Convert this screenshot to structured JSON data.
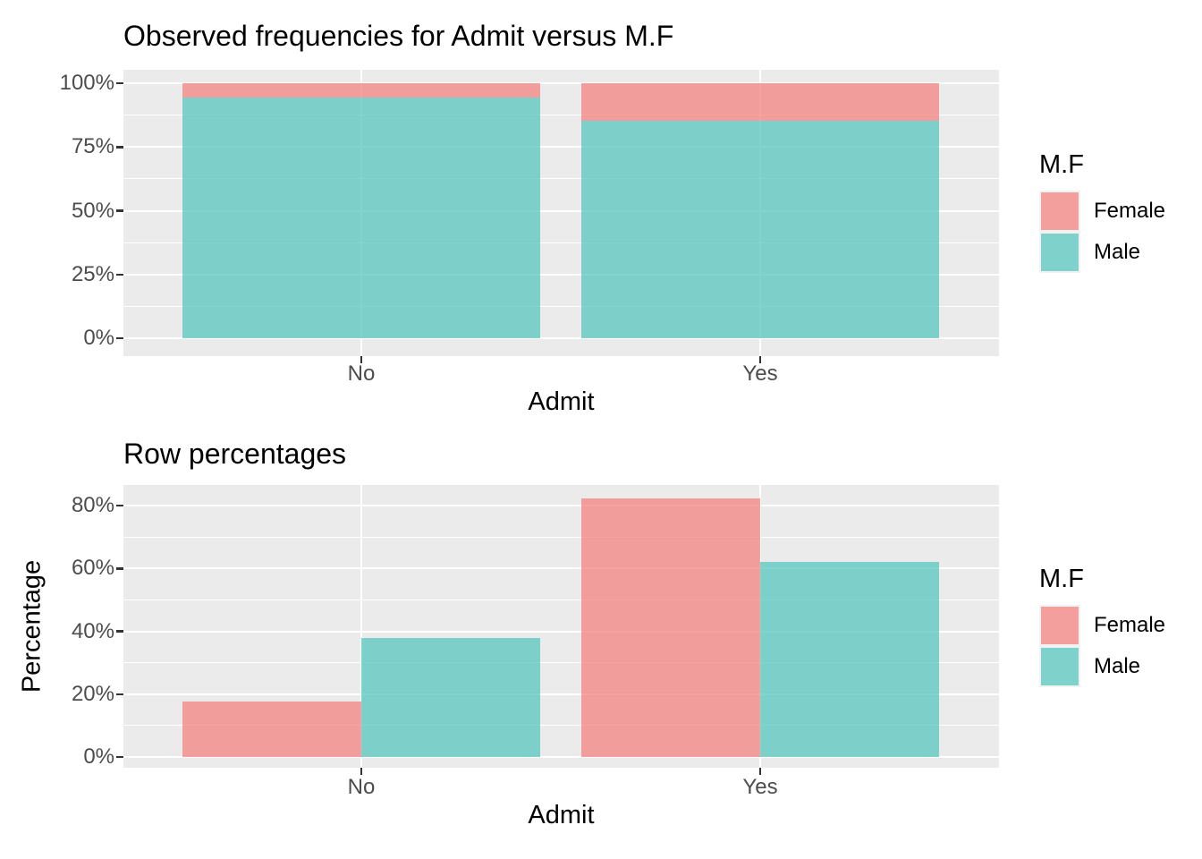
{
  "page": {
    "background": "#FFFFFF",
    "kind": "R ggplot2 plot output, two stacked panels"
  },
  "colors": {
    "female_fill_base": "#F28380",
    "male_fill_base": "#58C6BF",
    "fill_alpha": 0.75,
    "panel_bg": "#EBEBEB",
    "grid": "#FFFFFF",
    "tick_text": "#4D4D4D",
    "title_text": "#000000",
    "tick_mark": "#333333",
    "legend_key_bg": "#F2F2F2"
  },
  "chart_data": [
    {
      "type": "bar",
      "variant": "stacked",
      "stacking": "percent",
      "title": "Observed frequencies for Admit versus M.F",
      "xlabel": "Admit",
      "ylabel": "",
      "categories": [
        "No",
        "Yes"
      ],
      "series": [
        {
          "name": "Female",
          "color": "#F28380",
          "values": [
            5.7,
            14.8
          ]
        },
        {
          "name": "Male",
          "color": "#58C6BF",
          "values": [
            94.3,
            85.2
          ]
        }
      ],
      "ylim": [
        0,
        100
      ],
      "y_ticks": [
        {
          "value": 0,
          "label": "0%"
        },
        {
          "value": 25,
          "label": "25%"
        },
        {
          "value": 50,
          "label": "50%"
        },
        {
          "value": 75,
          "label": "75%"
        },
        {
          "value": 100,
          "label": "100%"
        }
      ],
      "y_minor": [
        12.5,
        37.5,
        62.5,
        87.5
      ],
      "grid": true,
      "legend": {
        "title": "M.F",
        "position": "right",
        "entries": [
          {
            "label": "Female",
            "color": "#F28380"
          },
          {
            "label": "Male",
            "color": "#58C6BF"
          }
        ]
      }
    },
    {
      "type": "bar",
      "variant": "dodged",
      "title": "Row percentages",
      "xlabel": "Admit",
      "ylabel": "Percentage",
      "categories": [
        "No",
        "Yes"
      ],
      "series": [
        {
          "name": "Female",
          "color": "#F28380",
          "values": [
            17.6,
            82.4
          ]
        },
        {
          "name": "Male",
          "color": "#58C6BF",
          "values": [
            37.9,
            62.1
          ]
        }
      ],
      "ylim": [
        0,
        80
      ],
      "y_ticks": [
        {
          "value": 0,
          "label": "0%"
        },
        {
          "value": 20,
          "label": "20%"
        },
        {
          "value": 40,
          "label": "40%"
        },
        {
          "value": 60,
          "label": "60%"
        },
        {
          "value": 80,
          "label": "80%"
        }
      ],
      "y_minor": [
        10,
        30,
        50,
        70
      ],
      "grid": true,
      "legend": {
        "title": "M.F",
        "position": "right",
        "entries": [
          {
            "label": "Female",
            "color": "#F28380"
          },
          {
            "label": "Male",
            "color": "#58C6BF"
          }
        ]
      }
    }
  ]
}
